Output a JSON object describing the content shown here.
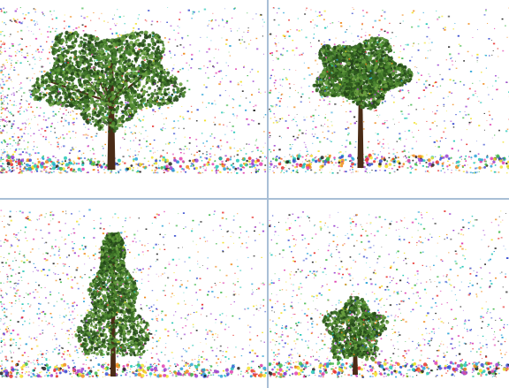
{
  "divider_color": "#a9bfd6",
  "background_color": "#ffffff",
  "particle_colors": [
    "#e8322e",
    "#f08a1a",
    "#f2e22a",
    "#3fb84a",
    "#2aa3d8",
    "#3a4fd0",
    "#9a3fd0",
    "#e040b0",
    "#222222",
    "#22c7b5"
  ],
  "foliage_colors": [
    "#2e5a1e",
    "#3d7228",
    "#4f8a32",
    "#6aa040",
    "#24461a"
  ],
  "trunk_color": "#4a2b16",
  "panels": [
    {
      "name": "panel-top-left",
      "tree_type": "broad-oak",
      "tree_size": "large",
      "particle_density": "dense-left"
    },
    {
      "name": "panel-top-right",
      "tree_type": "young-oak",
      "tree_size": "medium",
      "particle_density": "moderate"
    },
    {
      "name": "panel-bottom-left",
      "tree_type": "conifer",
      "tree_size": "tall",
      "particle_density": "dense"
    },
    {
      "name": "panel-bottom-right",
      "tree_type": "bush",
      "tree_size": "small",
      "particle_density": "dense"
    }
  ]
}
